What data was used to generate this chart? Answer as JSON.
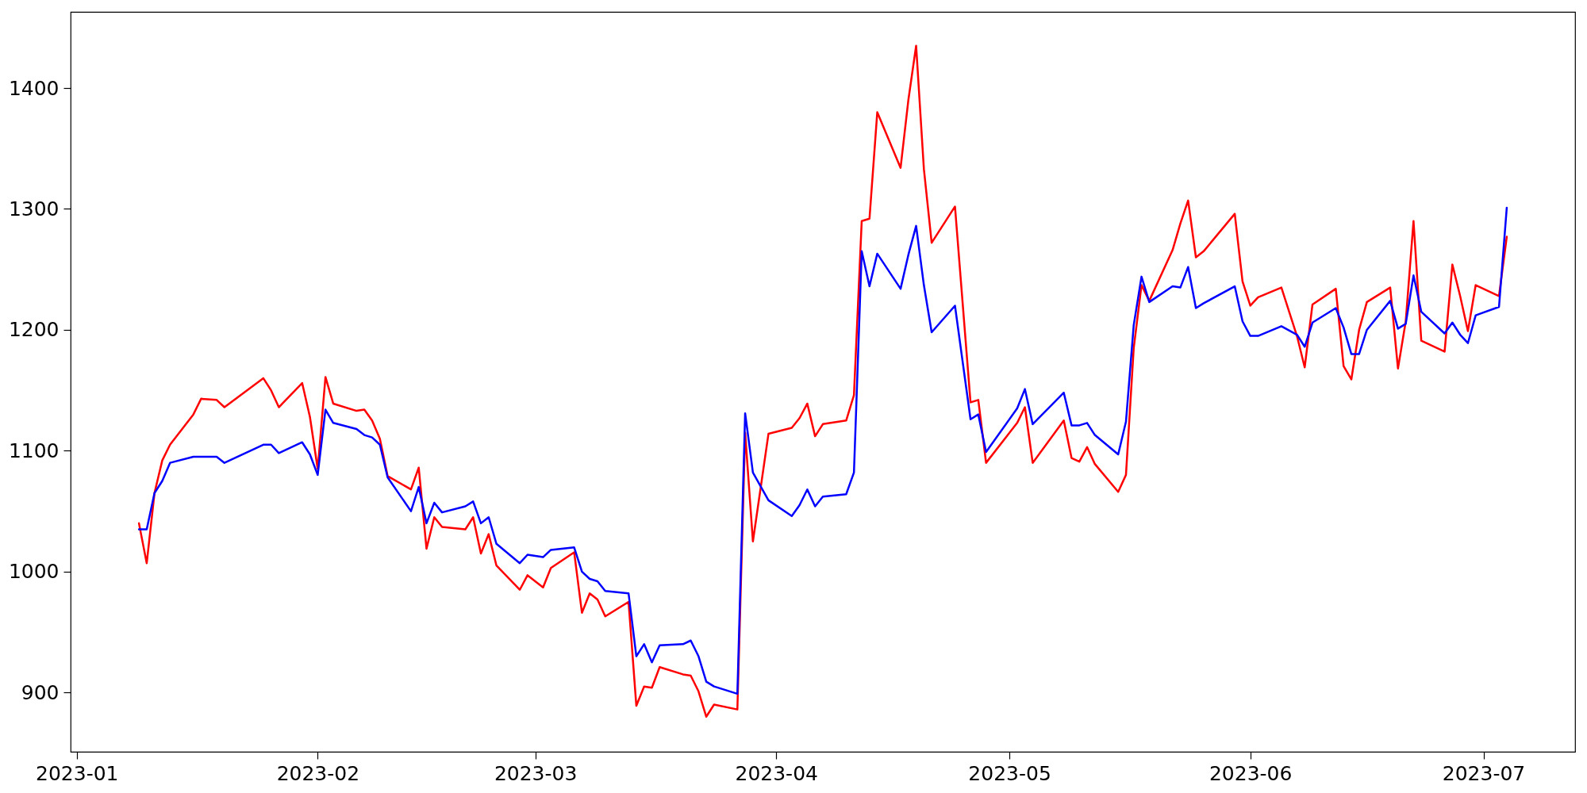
{
  "chart_data": {
    "type": "line",
    "x": [
      "2023-01-09",
      "2023-01-10",
      "2023-01-11",
      "2023-01-12",
      "2023-01-13",
      "2023-01-16",
      "2023-01-17",
      "2023-01-19",
      "2023-01-20",
      "2023-01-25",
      "2023-01-26",
      "2023-01-27",
      "2023-01-30",
      "2023-01-31",
      "2023-02-01",
      "2023-02-02",
      "2023-02-03",
      "2023-02-06",
      "2023-02-07",
      "2023-02-08",
      "2023-02-09",
      "2023-02-10",
      "2023-02-13",
      "2023-02-14",
      "2023-02-15",
      "2023-02-16",
      "2023-02-17",
      "2023-02-20",
      "2023-02-21",
      "2023-02-22",
      "2023-02-23",
      "2023-02-24",
      "2023-02-27",
      "2023-02-28",
      "2023-03-02",
      "2023-03-03",
      "2023-03-06",
      "2023-03-07",
      "2023-03-08",
      "2023-03-09",
      "2023-03-10",
      "2023-03-13",
      "2023-03-14",
      "2023-03-15",
      "2023-03-16",
      "2023-03-17",
      "2023-03-20",
      "2023-03-21",
      "2023-03-22",
      "2023-03-23",
      "2023-03-24",
      "2023-03-27",
      "2023-03-28",
      "2023-03-29",
      "2023-03-31",
      "2023-04-03",
      "2023-04-04",
      "2023-04-05",
      "2023-04-06",
      "2023-04-07",
      "2023-04-10",
      "2023-04-11",
      "2023-04-12",
      "2023-04-13",
      "2023-04-14",
      "2023-04-17",
      "2023-04-18",
      "2023-04-19",
      "2023-04-20",
      "2023-04-21",
      "2023-04-24",
      "2023-04-26",
      "2023-04-27",
      "2023-04-28",
      "2023-05-02",
      "2023-05-03",
      "2023-05-04",
      "2023-05-08",
      "2023-05-09",
      "2023-05-10",
      "2023-05-11",
      "2023-05-12",
      "2023-05-15",
      "2023-05-16",
      "2023-05-17",
      "2023-05-18",
      "2023-05-19",
      "2023-05-22",
      "2023-05-23",
      "2023-05-24",
      "2023-05-25",
      "2023-05-26",
      "2023-05-30",
      "2023-05-31",
      "2023-06-01",
      "2023-06-02",
      "2023-06-05",
      "2023-06-07",
      "2023-06-08",
      "2023-06-09",
      "2023-06-12",
      "2023-06-13",
      "2023-06-14",
      "2023-06-15",
      "2023-06-16",
      "2023-06-19",
      "2023-06-20",
      "2023-06-21",
      "2023-06-22",
      "2023-06-23",
      "2023-06-26",
      "2023-06-27",
      "2023-06-28",
      "2023-06-29",
      "2023-06-30",
      "2023-07-03",
      "2023-07-04"
    ],
    "series": [
      {
        "color": "#ff0000",
        "values": [
          1040,
          1007,
          1065,
          1092,
          1105,
          1130,
          1143,
          1142,
          1136,
          1160,
          1150,
          1136,
          1156,
          1128,
          1085,
          1161,
          1139,
          1133,
          1134,
          1125,
          1110,
          1079,
          1068,
          1086,
          1019,
          1045,
          1037,
          1035,
          1045,
          1015,
          1031,
          1005,
          985,
          997,
          987,
          1003,
          1016,
          966,
          982,
          977,
          963,
          975,
          889,
          905,
          904,
          921,
          915,
          914,
          901,
          880,
          890,
          886,
          1115,
          1025,
          1114,
          1119,
          1127,
          1139,
          1112,
          1122,
          1125,
          1146,
          1290,
          1292,
          1380,
          1334,
          1390,
          1435,
          1333,
          1272,
          1302,
          1140,
          1142,
          1090,
          1123,
          1136,
          1090,
          1125,
          1094,
          1091,
          1103,
          1089,
          1066,
          1080,
          1185,
          1237,
          1224,
          1266,
          1288,
          1307,
          1260,
          1265,
          1296,
          1240,
          1220,
          1227,
          1235,
          1195,
          1169,
          1221,
          1234,
          1170,
          1159,
          1200,
          1223,
          1235,
          1168,
          1207,
          1290,
          1191,
          1182,
          1254,
          1228,
          1199,
          1237,
          1228,
          1277
        ]
      },
      {
        "color": "#0000ff",
        "values": [
          1035,
          1035,
          1065,
          1075,
          1090,
          1095,
          1095,
          1095,
          1090,
          1105,
          1105,
          1098,
          1107,
          1097,
          1080,
          1134,
          1123,
          1118,
          1113,
          1111,
          1105,
          1078,
          1050,
          1070,
          1040,
          1057,
          1049,
          1054,
          1058,
          1040,
          1045,
          1023,
          1007,
          1014,
          1012,
          1018,
          1020,
          1000,
          994,
          992,
          984,
          982,
          930,
          940,
          925,
          939,
          940,
          943,
          930,
          909,
          905,
          899,
          1131,
          1082,
          1059,
          1046,
          1055,
          1068,
          1054,
          1062,
          1064,
          1082,
          1265,
          1236,
          1263,
          1234,
          1262,
          1286,
          1237,
          1198,
          1220,
          1126,
          1130,
          1099,
          1135,
          1151,
          1122,
          1148,
          1121,
          1121,
          1123,
          1113,
          1097,
          1124,
          1204,
          1244,
          1223,
          1236,
          1235,
          1252,
          1218,
          1222,
          1236,
          1207,
          1195,
          1195,
          1203,
          1196,
          1186,
          1206,
          1218,
          1202,
          1180,
          1180,
          1200,
          1224,
          1201,
          1205,
          1245,
          1215,
          1197,
          1206,
          1196,
          1189,
          1212,
          1219,
          1301
        ]
      }
    ],
    "xlim": [
      "2022-12-31T05:00",
      "2023-07-12T19:00"
    ],
    "xticks": [
      {
        "value": "2023-01-01",
        "label": "2023-01"
      },
      {
        "value": "2023-02-01",
        "label": "2023-02"
      },
      {
        "value": "2023-03-01",
        "label": "2023-03"
      },
      {
        "value": "2023-04-01",
        "label": "2023-04"
      },
      {
        "value": "2023-05-01",
        "label": "2023-05"
      },
      {
        "value": "2023-06-01",
        "label": "2023-06"
      },
      {
        "value": "2023-07-01",
        "label": "2023-07"
      }
    ],
    "ylim": [
      851,
      1463
    ],
    "yticks": [
      900,
      1000,
      1100,
      1200,
      1300,
      1400
    ]
  }
}
